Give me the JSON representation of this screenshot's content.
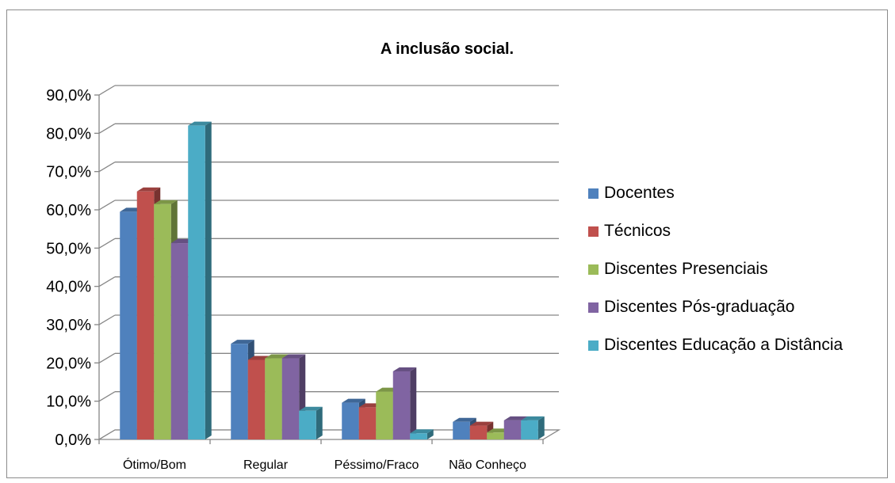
{
  "chart_data": {
    "type": "bar",
    "title": "A inclusão social.",
    "categories": [
      "Ótimo/Bom",
      "Regular",
      "Péssimo/Fraco",
      "Não Conheço"
    ],
    "series": [
      {
        "name": "Docentes",
        "color": "#4f81bd",
        "values": [
          59.5,
          25.0,
          9.6,
          4.6
        ]
      },
      {
        "name": "Técnicos",
        "color": "#c0504d",
        "values": [
          64.8,
          20.8,
          8.4,
          3.6
        ]
      },
      {
        "name": "Discentes Presenciais",
        "color": "#9bbb59",
        "values": [
          61.5,
          21.2,
          12.5,
          1.8
        ]
      },
      {
        "name": "Discentes Pós-graduação",
        "color": "#8064a2",
        "values": [
          51.3,
          21.2,
          17.8,
          5.0
        ]
      },
      {
        "name": "Discentes Educação a Distância",
        "color": "#4bacc6",
        "values": [
          82.0,
          7.5,
          1.6,
          5.0
        ]
      }
    ],
    "ylim": [
      0,
      90
    ],
    "yticks": [
      "0,0%",
      "10,0%",
      "20,0%",
      "30,0%",
      "40,0%",
      "50,0%",
      "60,0%",
      "70,0%",
      "80,0%",
      "90,0%"
    ],
    "grid": true,
    "legend_position": "right"
  }
}
